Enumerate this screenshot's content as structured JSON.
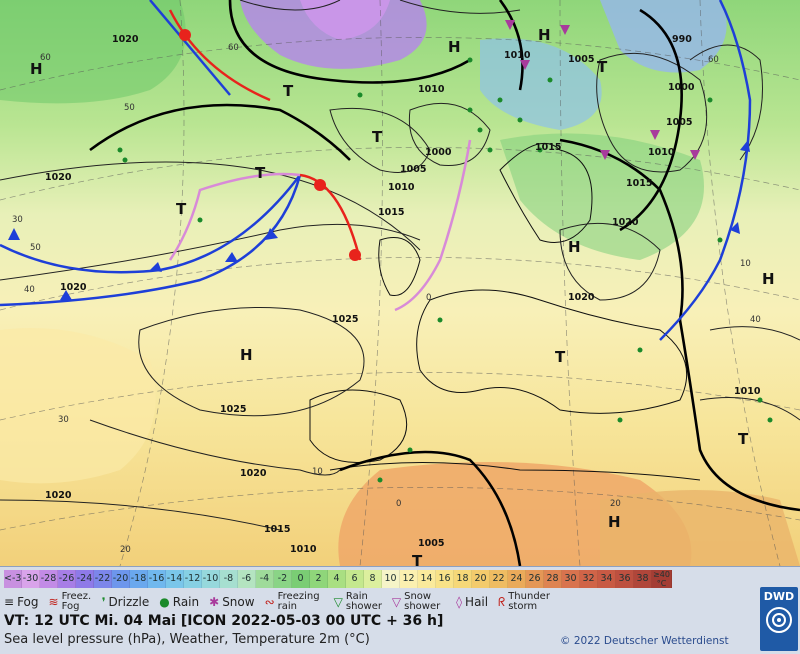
{
  "legend": {
    "temperature_scale": [
      "<-30",
      "-30",
      "-28",
      "-26",
      "-24",
      "-22",
      "-20",
      "-18",
      "-16",
      "-14",
      "-12",
      "-10",
      "-8",
      "-6",
      "-4",
      "-2",
      "0",
      "2",
      "4",
      "6",
      "8",
      "10",
      "12",
      "14",
      "16",
      "18",
      "20",
      "22",
      "24",
      "26",
      "28",
      "30",
      "32",
      "34",
      "36",
      "38",
      "≥40 °C"
    ],
    "temperature_colors": [
      "#c890e0",
      "#d9a3ea",
      "#c28be6",
      "#a77ee6",
      "#8e7ae8",
      "#7c86ea",
      "#6d96ec",
      "#6aa8ee",
      "#70b8ee",
      "#7ac6ea",
      "#86d0e4",
      "#96d8dc",
      "#a6dfd0",
      "#b4e4c0",
      "#9fdb9a",
      "#8ad486",
      "#7acd74",
      "#8fd67a",
      "#a9df82",
      "#c4e88e",
      "#dcef9e",
      "#f6f4c8",
      "#fbf0b0",
      "#faea9c",
      "#f8e288",
      "#f6d878",
      "#f3cb6c",
      "#efbc62",
      "#eaaa5a",
      "#e49756",
      "#de8452",
      "#d8734e",
      "#d06448",
      "#c85a44",
      "#bd5040",
      "#b0463a",
      "#a43d34"
    ],
    "weather_symbols": [
      {
        "icon": "fog-icon",
        "label": "Fog"
      },
      {
        "icon": "freezing-fog-icon",
        "label": "Freez. Fog"
      },
      {
        "icon": "drizzle-icon",
        "label": "Drizzle"
      },
      {
        "icon": "rain-icon",
        "label": "Rain"
      },
      {
        "icon": "snow-icon",
        "label": "Snow"
      },
      {
        "icon": "freezing-rain-icon",
        "label": "Freezing rain"
      },
      {
        "icon": "rain-shower-icon",
        "label": "Rain shower"
      },
      {
        "icon": "snow-shower-icon",
        "label": "Snow shower"
      },
      {
        "icon": "hail-icon",
        "label": "Hail"
      },
      {
        "icon": "thunderstorm-icon",
        "label": "Thunder storm"
      }
    ]
  },
  "valid_time": "VT: 12 UTC Mi.  04 Mai [ICON 2022-05-03  00 UTC + 36 h]",
  "subtitle": "Sea level pressure (hPa), Weather, Temperature 2m (°C)",
  "copyright": "© 2022 Deutscher Wetterdienst",
  "logo_text": "DWD",
  "map": {
    "pressure_labels": [
      "1020",
      "1020",
      "1015",
      "1010",
      "1005",
      "1000",
      "990",
      "1010",
      "1005",
      "1000",
      "1010",
      "1015",
      "1020",
      "1025",
      "1025",
      "1020",
      "1020",
      "1015",
      "1010",
      "1005",
      "1020",
      "1015",
      "1010",
      "1005",
      "1010",
      "1020"
    ],
    "pressure_centers": [
      "H",
      "H",
      "H",
      "H",
      "H",
      "H",
      "H",
      "T",
      "T",
      "T",
      "T",
      "T",
      "T",
      "T",
      "T"
    ],
    "graticule_labels": [
      "60",
      "60",
      "50",
      "50",
      "40",
      "40",
      "30",
      "30",
      "20",
      "20",
      "10",
      "0",
      "60",
      "10",
      "0"
    ]
  }
}
